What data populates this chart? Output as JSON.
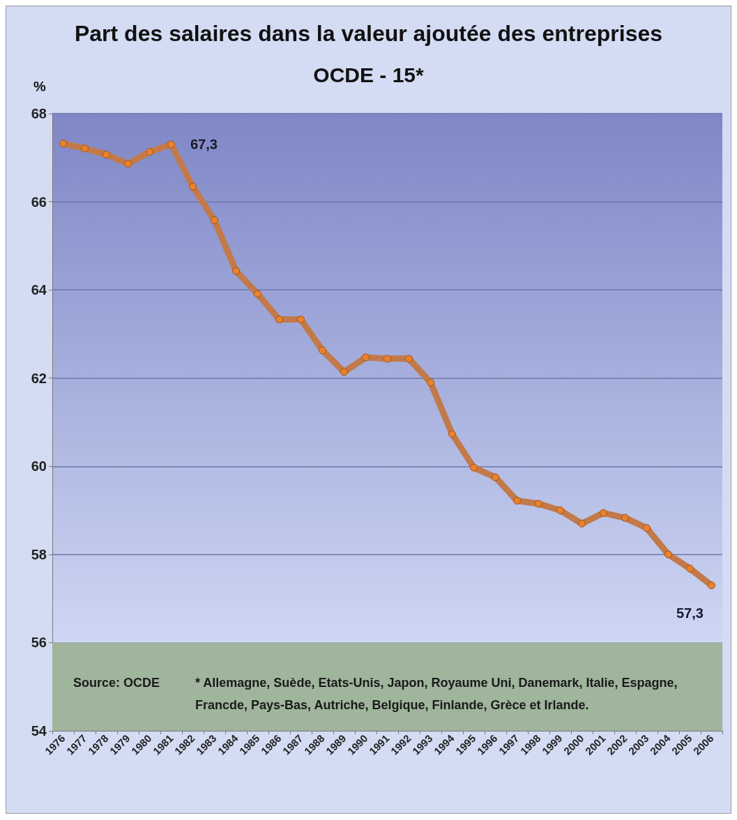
{
  "chart_data": {
    "type": "line",
    "title": "Part des salaires dans la valeur ajoutée des entreprises",
    "subtitle": "OCDE - 15*",
    "ylabel": "%",
    "categories": [
      "1976",
      "1977",
      "1978",
      "1979",
      "1980",
      "1981",
      "1982",
      "1983",
      "1984",
      "1985",
      "1986",
      "1987",
      "1988",
      "1989",
      "1990",
      "1991",
      "1992",
      "1993",
      "1994",
      "1995",
      "1996",
      "1997",
      "1998",
      "1999",
      "2000",
      "2001",
      "2002",
      "2003",
      "2004",
      "2005",
      "2006"
    ],
    "series": [
      {
        "color": "#c27a4a",
        "values": [
          67.32,
          67.21,
          67.07,
          66.86,
          67.13,
          67.3,
          66.34,
          65.58,
          64.43,
          63.91,
          63.33,
          63.33,
          62.63,
          62.14,
          62.47,
          62.44,
          62.44,
          61.9,
          60.73,
          59.97,
          59.75,
          59.22,
          59.15,
          59.0,
          58.7,
          58.94,
          58.83,
          58.6,
          58.0,
          57.68,
          57.3
        ],
        "value_labels": [
          null,
          null,
          null,
          null,
          null,
          "67,3",
          null,
          null,
          null,
          null,
          null,
          null,
          null,
          null,
          null,
          null,
          null,
          null,
          null,
          null,
          null,
          null,
          null,
          null,
          null,
          null,
          null,
          null,
          null,
          null,
          "57,3"
        ]
      }
    ],
    "ylim": [
      54,
      68
    ],
    "yticks": [
      54,
      56,
      58,
      60,
      62,
      64,
      66,
      68
    ],
    "grid": "y",
    "marker": "circle",
    "line_style": "solid",
    "bands": [
      {
        "axis": "y",
        "from": 54,
        "to": 56,
        "color": "#9fb59c"
      }
    ],
    "annotations": [
      "Source: OCDE",
      "* Allemagne, Suède, Etats-Unis, Japon, Royaume Uni, Danemark, Italie, Espagne, Francde, Pays-Bas, Autriche, Belgique, Finlande, Grèce et Irlande."
    ]
  }
}
